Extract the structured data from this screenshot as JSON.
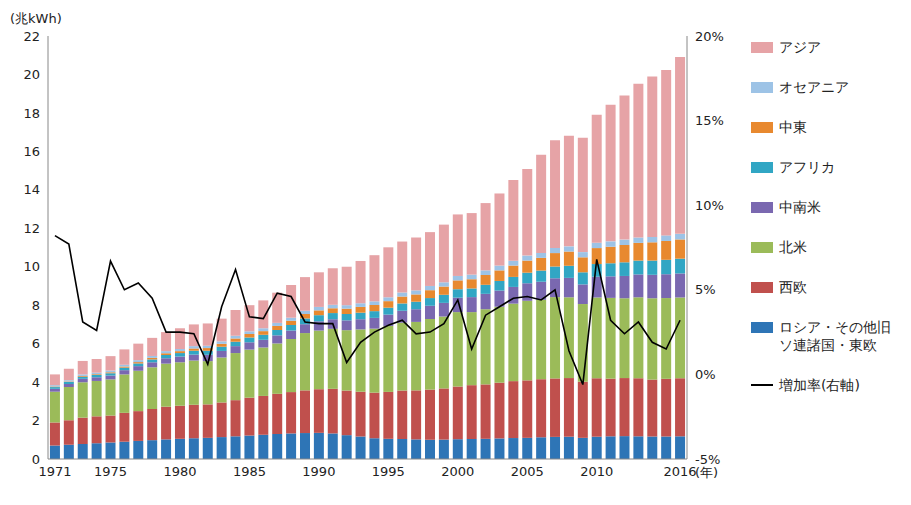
{
  "chart_data": {
    "type": "bar",
    "stacked": true,
    "grid": false,
    "legend": "right",
    "ylabel": "(兆kWh)",
    "xlabel": "(年)",
    "categories": [
      "1971",
      null,
      null,
      null,
      "1975",
      null,
      null,
      null,
      null,
      "1980",
      null,
      null,
      null,
      null,
      "1985",
      null,
      null,
      null,
      null,
      "1990",
      null,
      null,
      null,
      null,
      "1995",
      null,
      null,
      null,
      null,
      "2000",
      null,
      null,
      null,
      null,
      "2005",
      null,
      null,
      null,
      null,
      "2010",
      null,
      null,
      null,
      null,
      null,
      "2016"
    ],
    "ylim": [
      0,
      22
    ],
    "yticks": [
      0,
      2,
      4,
      6,
      8,
      10,
      12,
      14,
      16,
      18,
      20,
      22
    ],
    "y2lim": [
      -5,
      20
    ],
    "y2ticks": [
      {
        "value": -5,
        "label": "-5%"
      },
      {
        "value": 0,
        "label": "0%"
      },
      {
        "value": 5,
        "label": "5%"
      },
      {
        "value": 10,
        "label": "10%"
      },
      {
        "value": 15,
        "label": "15%"
      },
      {
        "value": 20,
        "label": "20%"
      }
    ],
    "series": [
      {
        "name": "ロシア・その他旧ソ連諸国・東欧",
        "color": "#2e75b6",
        "values": [
          0.7,
          0.74,
          0.78,
          0.82,
          0.86,
          0.9,
          0.94,
          0.98,
          1.02,
          1.05,
          1.08,
          1.1,
          1.14,
          1.18,
          1.22,
          1.26,
          1.3,
          1.33,
          1.35,
          1.36,
          1.33,
          1.24,
          1.17,
          1.08,
          1.05,
          1.04,
          1.02,
          1.0,
          1.01,
          1.03,
          1.04,
          1.05,
          1.07,
          1.09,
          1.1,
          1.13,
          1.15,
          1.16,
          1.1,
          1.16,
          1.18,
          1.19,
          1.18,
          1.17,
          1.17,
          1.18
        ]
      },
      {
        "name": "西欧",
        "color": "#c0504d",
        "values": [
          1.2,
          1.28,
          1.37,
          1.4,
          1.4,
          1.5,
          1.55,
          1.62,
          1.7,
          1.72,
          1.74,
          1.74,
          1.8,
          1.88,
          1.97,
          2.02,
          2.09,
          2.15,
          2.22,
          2.27,
          2.32,
          2.32,
          2.33,
          2.37,
          2.44,
          2.52,
          2.55,
          2.61,
          2.66,
          2.74,
          2.8,
          2.83,
          2.9,
          2.96,
          2.99,
          3.02,
          3.04,
          3.05,
          2.92,
          3.04,
          3.0,
          3.02,
          3.02,
          2.96,
          3.0,
          3.02
        ]
      },
      {
        "name": "北米",
        "color": "#9bbb59",
        "values": [
          1.6,
          1.72,
          1.84,
          1.84,
          1.88,
          2.0,
          2.1,
          2.17,
          2.24,
          2.26,
          2.3,
          2.25,
          2.34,
          2.45,
          2.5,
          2.52,
          2.62,
          2.76,
          2.98,
          3.05,
          3.12,
          3.14,
          3.24,
          3.33,
          3.43,
          3.53,
          3.56,
          3.67,
          3.74,
          3.87,
          3.8,
          3.91,
          3.95,
          4.03,
          4.14,
          4.13,
          4.23,
          4.2,
          4.04,
          4.2,
          4.2,
          4.15,
          4.21,
          4.23,
          4.2,
          4.2
        ]
      },
      {
        "name": "中南米",
        "color": "#7a68b0",
        "values": [
          0.15,
          0.16,
          0.18,
          0.19,
          0.2,
          0.22,
          0.24,
          0.26,
          0.28,
          0.3,
          0.31,
          0.33,
          0.34,
          0.36,
          0.38,
          0.4,
          0.42,
          0.44,
          0.46,
          0.48,
          0.5,
          0.51,
          0.53,
          0.56,
          0.59,
          0.62,
          0.66,
          0.69,
          0.71,
          0.75,
          0.78,
          0.8,
          0.84,
          0.87,
          0.91,
          0.94,
          0.98,
          1.01,
          1.02,
          1.08,
          1.12,
          1.16,
          1.19,
          1.22,
          1.24,
          1.25
        ]
      },
      {
        "name": "アフリカ",
        "color": "#31a6c4",
        "values": [
          0.09,
          0.1,
          0.11,
          0.12,
          0.12,
          0.13,
          0.14,
          0.15,
          0.17,
          0.18,
          0.2,
          0.21,
          0.22,
          0.23,
          0.25,
          0.26,
          0.28,
          0.29,
          0.3,
          0.32,
          0.32,
          0.33,
          0.34,
          0.35,
          0.36,
          0.38,
          0.39,
          0.4,
          0.42,
          0.44,
          0.45,
          0.47,
          0.5,
          0.52,
          0.55,
          0.58,
          0.61,
          0.63,
          0.63,
          0.66,
          0.68,
          0.71,
          0.72,
          0.74,
          0.75,
          0.77
        ]
      },
      {
        "name": "中東",
        "color": "#e8892f",
        "values": [
          0.03,
          0.03,
          0.04,
          0.04,
          0.05,
          0.06,
          0.07,
          0.08,
          0.09,
          0.1,
          0.12,
          0.14,
          0.15,
          0.17,
          0.18,
          0.19,
          0.21,
          0.22,
          0.23,
          0.25,
          0.25,
          0.28,
          0.3,
          0.32,
          0.34,
          0.36,
          0.38,
          0.41,
          0.43,
          0.46,
          0.48,
          0.51,
          0.55,
          0.59,
          0.63,
          0.66,
          0.7,
          0.74,
          0.78,
          0.83,
          0.86,
          0.9,
          0.92,
          0.95,
          0.98,
          1.0
        ]
      },
      {
        "name": "オセアニア",
        "color": "#9dc3e6",
        "values": [
          0.07,
          0.07,
          0.08,
          0.08,
          0.09,
          0.09,
          0.1,
          0.1,
          0.11,
          0.11,
          0.12,
          0.12,
          0.13,
          0.14,
          0.14,
          0.15,
          0.16,
          0.16,
          0.17,
          0.18,
          0.18,
          0.18,
          0.19,
          0.19,
          0.2,
          0.21,
          0.21,
          0.22,
          0.22,
          0.23,
          0.24,
          0.24,
          0.25,
          0.25,
          0.26,
          0.26,
          0.27,
          0.27,
          0.27,
          0.28,
          0.28,
          0.28,
          0.28,
          0.28,
          0.29,
          0.29
        ]
      },
      {
        "name": "アジア",
        "color": "#e6a3a6",
        "values": [
          0.56,
          0.6,
          0.7,
          0.71,
          0.75,
          0.8,
          0.86,
          0.94,
          0.99,
          1.08,
          1.13,
          1.16,
          1.18,
          1.34,
          1.36,
          1.45,
          1.57,
          1.7,
          1.75,
          1.8,
          1.9,
          2.0,
          2.2,
          2.4,
          2.6,
          2.65,
          2.75,
          2.8,
          3.0,
          3.2,
          3.2,
          3.5,
          3.75,
          4.2,
          4.5,
          5.1,
          5.6,
          5.75,
          5.95,
          6.65,
          7.1,
          7.5,
          8.0,
          8.35,
          8.6,
          9.2
        ]
      },
      {
        "name": "増加率(右軸)",
        "type": "line",
        "axis": "y2",
        "color": "#000000",
        "values": [
          8.2,
          7.7,
          3.1,
          2.6,
          6.7,
          5.0,
          5.4,
          4.5,
          2.5,
          2.5,
          2.4,
          0.6,
          4.0,
          6.2,
          3.4,
          3.3,
          4.8,
          4.6,
          3.1,
          3.0,
          3.0,
          0.7,
          1.9,
          2.5,
          2.9,
          3.2,
          2.4,
          2.5,
          3.0,
          4.4,
          1.5,
          3.5,
          4.0,
          4.5,
          4.6,
          4.4,
          5.0,
          1.4,
          -0.6,
          6.8,
          3.2,
          2.4,
          3.1,
          1.9,
          1.5,
          3.2
        ]
      }
    ]
  }
}
